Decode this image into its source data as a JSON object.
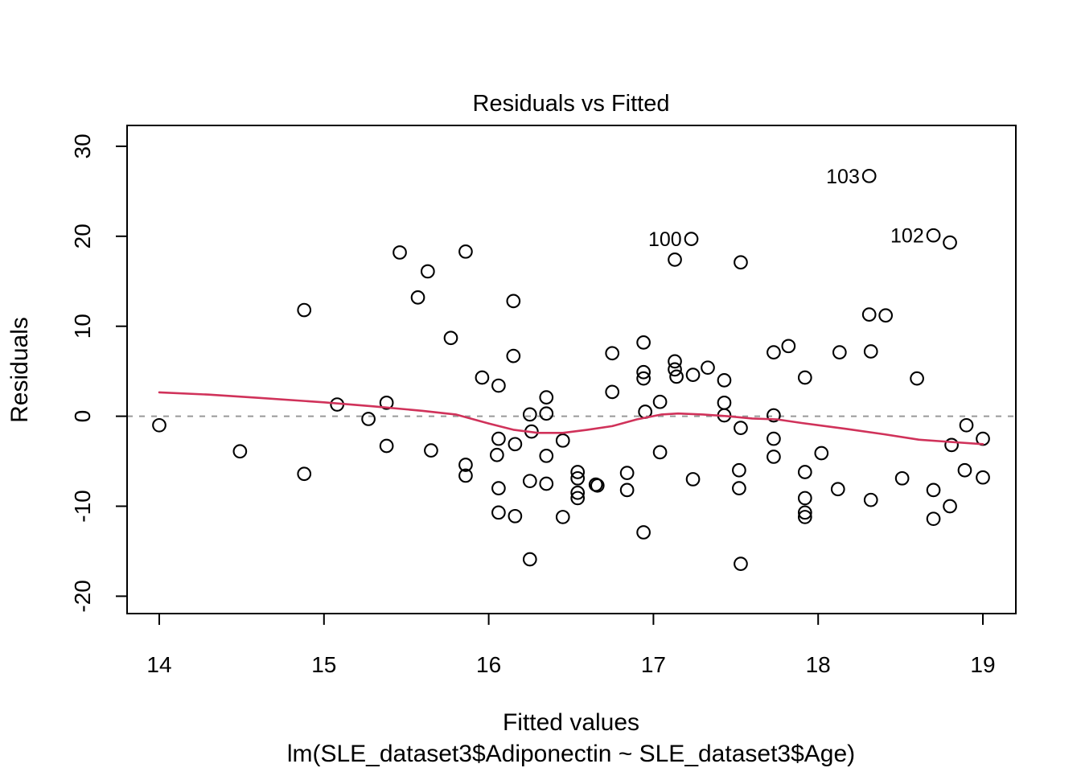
{
  "figure": {
    "title": "Residuals vs Fitted",
    "x_axis_label": "Fitted values",
    "x_axis_sublabel": "lm(SLE_dataset3$Adiponectin ~ SLE_dataset3$Age)",
    "y_axis_label": "Residuals"
  },
  "chart_data": {
    "type": "scatter",
    "title": "Residuals vs Fitted",
    "xlabel": "Fitted values",
    "xlabel_line2": "lm(SLE_dataset3$Adiponectin ~ SLE_dataset3$Age)",
    "ylabel": "Residuals",
    "x_ticks": [
      14,
      15,
      16,
      17,
      18,
      19
    ],
    "y_ticks": [
      -20,
      -10,
      0,
      10,
      20,
      30
    ],
    "xlim": [
      13.8,
      19.2
    ],
    "ylim": [
      -21.9,
      32.3
    ],
    "grid": false,
    "legend": "none",
    "zero_reference_line": 0,
    "points": [
      [
        14.0,
        -1.0
      ],
      [
        14.49,
        -3.9
      ],
      [
        14.88,
        11.8
      ],
      [
        14.88,
        -6.4
      ],
      [
        15.08,
        1.3
      ],
      [
        15.27,
        -0.3
      ],
      [
        15.38,
        1.5
      ],
      [
        15.38,
        -3.3
      ],
      [
        15.46,
        18.2
      ],
      [
        15.57,
        13.2
      ],
      [
        15.63,
        16.1
      ],
      [
        15.65,
        -3.8
      ],
      [
        15.77,
        8.7
      ],
      [
        15.86,
        18.3
      ],
      [
        15.86,
        -5.4
      ],
      [
        15.86,
        -6.6
      ],
      [
        15.96,
        4.3
      ],
      [
        16.06,
        3.4
      ],
      [
        16.06,
        -2.5
      ],
      [
        16.05,
        -4.3
      ],
      [
        16.06,
        -8.0
      ],
      [
        16.06,
        -10.7
      ],
      [
        16.15,
        12.8
      ],
      [
        16.15,
        6.7
      ],
      [
        16.16,
        -3.1
      ],
      [
        16.16,
        -11.1
      ],
      [
        16.25,
        0.2
      ],
      [
        16.26,
        -1.7
      ],
      [
        16.25,
        -7.2
      ],
      [
        16.25,
        -15.9
      ],
      [
        16.35,
        2.1
      ],
      [
        16.35,
        0.3
      ],
      [
        16.35,
        -4.4
      ],
      [
        16.35,
        -7.5
      ],
      [
        16.45,
        -2.7
      ],
      [
        16.45,
        -11.2
      ],
      [
        16.54,
        -6.2
      ],
      [
        16.54,
        -6.9
      ],
      [
        16.54,
        -8.5
      ],
      [
        16.54,
        -9.1
      ],
      [
        16.65,
        -7.6
      ],
      [
        16.66,
        -7.7
      ],
      [
        16.75,
        7.0
      ],
      [
        16.75,
        2.7
      ],
      [
        16.84,
        -6.3
      ],
      [
        16.84,
        -8.2
      ],
      [
        16.94,
        8.2
      ],
      [
        16.94,
        4.9
      ],
      [
        16.94,
        4.2
      ],
      [
        16.95,
        0.5
      ],
      [
        16.94,
        -12.9
      ],
      [
        17.04,
        1.6
      ],
      [
        17.04,
        -4.0
      ],
      [
        17.13,
        17.4
      ],
      [
        17.13,
        6.1
      ],
      [
        17.13,
        5.2
      ],
      [
        17.14,
        4.4
      ],
      [
        17.24,
        4.6
      ],
      [
        17.24,
        -7.0
      ],
      [
        17.33,
        5.4
      ],
      [
        17.43,
        4.0
      ],
      [
        17.43,
        1.5
      ],
      [
        17.43,
        0.1
      ],
      [
        17.53,
        17.1
      ],
      [
        17.53,
        -1.3
      ],
      [
        17.52,
        -6.0
      ],
      [
        17.52,
        -8.0
      ],
      [
        17.53,
        -16.4
      ],
      [
        17.73,
        7.1
      ],
      [
        17.73,
        0.1
      ],
      [
        17.73,
        -2.5
      ],
      [
        17.73,
        -4.5
      ],
      [
        17.82,
        7.8
      ],
      [
        17.92,
        4.3
      ],
      [
        17.92,
        -6.2
      ],
      [
        17.92,
        -9.1
      ],
      [
        17.92,
        -10.7
      ],
      [
        17.92,
        -11.2
      ],
      [
        18.02,
        -4.1
      ],
      [
        18.13,
        7.1
      ],
      [
        18.12,
        -8.1
      ],
      [
        18.31,
        11.3
      ],
      [
        18.41,
        11.2
      ],
      [
        18.32,
        7.2
      ],
      [
        18.32,
        -9.3
      ],
      [
        18.51,
        -6.9
      ],
      [
        18.6,
        4.2
      ],
      [
        18.8,
        19.3
      ],
      [
        18.7,
        -8.2
      ],
      [
        18.7,
        -11.4
      ],
      [
        18.8,
        -10.0
      ],
      [
        18.81,
        -3.2
      ],
      [
        18.9,
        -1.0
      ],
      [
        19.0,
        -2.5
      ],
      [
        18.89,
        -6.0
      ],
      [
        19.0,
        -6.8
      ]
    ],
    "labeled_points": [
      {
        "label": "100",
        "x": 17.23,
        "y": 19.7
      },
      {
        "label": "102",
        "x": 18.7,
        "y": 20.1
      },
      {
        "label": "103",
        "x": 18.31,
        "y": 26.7
      }
    ],
    "smoother_line": [
      [
        14.0,
        2.65
      ],
      [
        14.3,
        2.4
      ],
      [
        14.6,
        2.05
      ],
      [
        15.0,
        1.55
      ],
      [
        15.3,
        1.1
      ],
      [
        15.6,
        0.6
      ],
      [
        15.8,
        0.2
      ],
      [
        16.0,
        -0.8
      ],
      [
        16.15,
        -1.5
      ],
      [
        16.3,
        -1.85
      ],
      [
        16.45,
        -1.85
      ],
      [
        16.6,
        -1.5
      ],
      [
        16.75,
        -1.1
      ],
      [
        16.9,
        -0.35
      ],
      [
        17.05,
        0.2
      ],
      [
        17.15,
        0.3
      ],
      [
        17.3,
        0.2
      ],
      [
        17.45,
        0.0
      ],
      [
        17.6,
        -0.25
      ],
      [
        17.75,
        -0.35
      ],
      [
        17.9,
        -0.75
      ],
      [
        18.17,
        -1.4
      ],
      [
        18.4,
        -2.0
      ],
      [
        18.61,
        -2.6
      ],
      [
        18.8,
        -2.85
      ],
      [
        19.0,
        -3.1
      ]
    ],
    "colors": {
      "points": "#000000",
      "smoother": "#d0325a",
      "zero_line": "#999999",
      "axis": "#000000"
    }
  }
}
